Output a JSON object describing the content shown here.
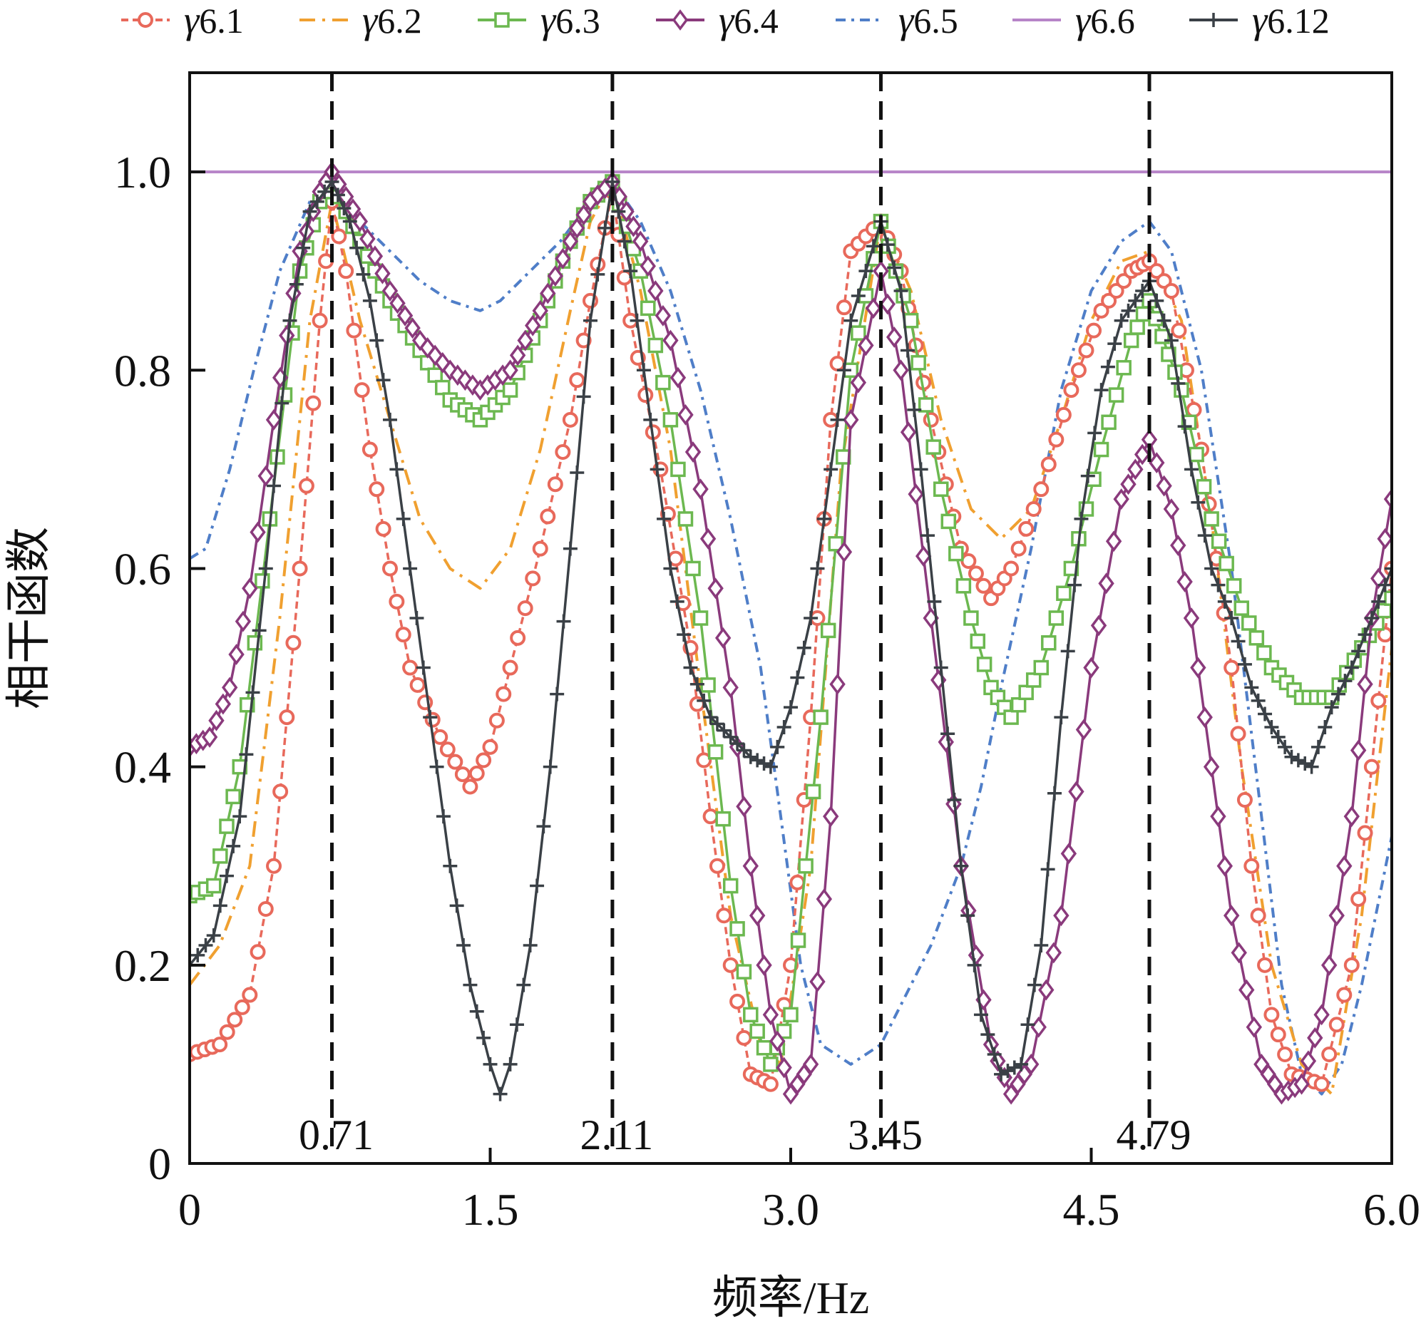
{
  "chart_data": {
    "type": "line",
    "title": "",
    "xlabel": "频率/Hz",
    "ylabel": "相干函数",
    "xlim": [
      0,
      6.0
    ],
    "ylim": [
      0,
      1.1
    ],
    "x_ticks": [
      "0",
      "1.5",
      "3.0",
      "4.5",
      "6.0"
    ],
    "y_ticks": [
      "0",
      "0.2",
      "0.4",
      "0.6",
      "0.8",
      "1.0"
    ],
    "legend_position": "top",
    "grid": false,
    "reference_lines": [
      {
        "x": 0.71,
        "label": "0.71"
      },
      {
        "x": 2.11,
        "label": "2.11"
      },
      {
        "x": 3.45,
        "label": "3.45"
      },
      {
        "x": 4.79,
        "label": "4.79"
      }
    ],
    "series": [
      {
        "name": "γ6.1",
        "symbol": "γ",
        "sub": "6.1",
        "color": "#e8695b",
        "marker": "circle",
        "dash": "10,6",
        "x": [
          0,
          0.15,
          0.3,
          0.42,
          0.55,
          0.65,
          0.71,
          0.78,
          0.9,
          1.0,
          1.1,
          1.25,
          1.4,
          1.5,
          1.6,
          1.75,
          1.9,
          2.0,
          2.11,
          2.2,
          2.35,
          2.5,
          2.6,
          2.7,
          2.8,
          2.9,
          3.0,
          3.1,
          3.2,
          3.3,
          3.45,
          3.55,
          3.7,
          3.85,
          4.0,
          4.1,
          4.25,
          4.4,
          4.55,
          4.7,
          4.79,
          4.9,
          5.05,
          5.2,
          5.3,
          5.4,
          5.5,
          5.65,
          5.8,
          5.9,
          6.0
        ],
        "y": [
          0.11,
          0.12,
          0.17,
          0.3,
          0.6,
          0.85,
          0.97,
          0.9,
          0.72,
          0.6,
          0.5,
          0.43,
          0.38,
          0.42,
          0.5,
          0.62,
          0.75,
          0.87,
          0.98,
          0.85,
          0.7,
          0.52,
          0.35,
          0.2,
          0.09,
          0.08,
          0.2,
          0.45,
          0.75,
          0.92,
          0.95,
          0.9,
          0.75,
          0.62,
          0.57,
          0.6,
          0.68,
          0.78,
          0.86,
          0.9,
          0.91,
          0.88,
          0.72,
          0.5,
          0.3,
          0.15,
          0.09,
          0.08,
          0.2,
          0.4,
          0.6
        ]
      },
      {
        "name": "γ6.2",
        "symbol": "γ",
        "sub": "6.2",
        "color": "#f0a030",
        "marker": "none",
        "dash": "22,10,4,10",
        "x": [
          0,
          0.15,
          0.3,
          0.45,
          0.6,
          0.71,
          0.85,
          1.0,
          1.15,
          1.3,
          1.45,
          1.6,
          1.75,
          1.9,
          2.0,
          2.11,
          2.25,
          2.4,
          2.55,
          2.7,
          2.85,
          2.95,
          3.1,
          3.25,
          3.45,
          3.6,
          3.75,
          3.9,
          4.05,
          4.2,
          4.35,
          4.5,
          4.65,
          4.79,
          4.95,
          5.1,
          5.25,
          5.4,
          5.55,
          5.7,
          5.85,
          6.0
        ],
        "y": [
          0.18,
          0.22,
          0.3,
          0.55,
          0.85,
          0.97,
          0.85,
          0.75,
          0.65,
          0.6,
          0.58,
          0.62,
          0.72,
          0.86,
          0.95,
          0.99,
          0.88,
          0.72,
          0.48,
          0.25,
          0.12,
          0.1,
          0.3,
          0.7,
          0.95,
          0.88,
          0.75,
          0.66,
          0.63,
          0.66,
          0.75,
          0.85,
          0.91,
          0.92,
          0.85,
          0.65,
          0.4,
          0.2,
          0.1,
          0.07,
          0.25,
          0.52
        ]
      },
      {
        "name": "γ6.3",
        "symbol": "γ",
        "sub": "6.3",
        "color": "#6cb850",
        "marker": "square",
        "dash": "",
        "x": [
          0,
          0.12,
          0.25,
          0.4,
          0.55,
          0.65,
          0.71,
          0.85,
          1.0,
          1.15,
          1.3,
          1.45,
          1.6,
          1.75,
          1.9,
          2.0,
          2.11,
          2.25,
          2.4,
          2.55,
          2.7,
          2.8,
          2.9,
          3.0,
          3.15,
          3.3,
          3.45,
          3.6,
          3.75,
          3.9,
          4.0,
          4.1,
          4.25,
          4.4,
          4.55,
          4.7,
          4.79,
          4.95,
          5.1,
          5.25,
          5.4,
          5.55,
          5.7,
          5.85,
          6.0
        ],
        "y": [
          0.27,
          0.28,
          0.4,
          0.65,
          0.9,
          0.97,
          0.99,
          0.93,
          0.87,
          0.82,
          0.77,
          0.75,
          0.78,
          0.85,
          0.93,
          0.97,
          0.99,
          0.9,
          0.75,
          0.55,
          0.28,
          0.15,
          0.1,
          0.15,
          0.45,
          0.8,
          0.95,
          0.85,
          0.68,
          0.55,
          0.48,
          0.45,
          0.5,
          0.6,
          0.72,
          0.83,
          0.87,
          0.78,
          0.65,
          0.56,
          0.5,
          0.47,
          0.47,
          0.52,
          0.57
        ]
      },
      {
        "name": "γ6.4",
        "symbol": "γ",
        "sub": "6.4",
        "color": "#8a3a7c",
        "marker": "diamond",
        "dash": "",
        "x": [
          0,
          0.1,
          0.2,
          0.3,
          0.42,
          0.55,
          0.65,
          0.71,
          0.85,
          1.0,
          1.15,
          1.3,
          1.45,
          1.6,
          1.75,
          1.9,
          2.0,
          2.11,
          2.25,
          2.4,
          2.55,
          2.7,
          2.8,
          2.9,
          3.0,
          3.1,
          3.2,
          3.3,
          3.45,
          3.55,
          3.7,
          3.85,
          4.0,
          4.1,
          4.2,
          4.35,
          4.5,
          4.65,
          4.79,
          4.9,
          5.0,
          5.1,
          5.2,
          5.35,
          5.45,
          5.55,
          5.65,
          5.8,
          5.9,
          6.0
        ],
        "y": [
          0.42,
          0.43,
          0.48,
          0.58,
          0.75,
          0.92,
          0.98,
          1.0,
          0.95,
          0.88,
          0.83,
          0.8,
          0.78,
          0.8,
          0.86,
          0.93,
          0.97,
          0.99,
          0.93,
          0.83,
          0.68,
          0.48,
          0.3,
          0.15,
          0.07,
          0.1,
          0.35,
          0.75,
          0.9,
          0.8,
          0.55,
          0.3,
          0.12,
          0.07,
          0.1,
          0.25,
          0.5,
          0.67,
          0.73,
          0.66,
          0.55,
          0.4,
          0.25,
          0.1,
          0.07,
          0.08,
          0.15,
          0.35,
          0.55,
          0.67
        ]
      },
      {
        "name": "γ6.5",
        "symbol": "γ",
        "sub": "6.5",
        "color": "#4f7ec8",
        "marker": "none",
        "dash": "14,8,4,8",
        "x": [
          0,
          0.08,
          0.2,
          0.32,
          0.45,
          0.6,
          0.71,
          0.85,
          1.0,
          1.15,
          1.3,
          1.45,
          1.55,
          1.7,
          1.85,
          2.0,
          2.11,
          2.25,
          2.4,
          2.55,
          2.7,
          2.85,
          2.95,
          3.05,
          3.15,
          3.3,
          3.45,
          3.55,
          3.7,
          3.85,
          3.95,
          4.05,
          4.2,
          4.35,
          4.5,
          4.65,
          4.79,
          4.9,
          5.05,
          5.2,
          5.35,
          5.45,
          5.55,
          5.65,
          5.75,
          5.85,
          6.0
        ],
        "y": [
          0.61,
          0.62,
          0.7,
          0.8,
          0.9,
          0.97,
          0.99,
          0.95,
          0.92,
          0.89,
          0.87,
          0.86,
          0.87,
          0.9,
          0.93,
          0.97,
          0.99,
          0.95,
          0.88,
          0.78,
          0.65,
          0.5,
          0.35,
          0.2,
          0.12,
          0.1,
          0.12,
          0.16,
          0.22,
          0.3,
          0.38,
          0.48,
          0.62,
          0.78,
          0.88,
          0.93,
          0.95,
          0.92,
          0.8,
          0.6,
          0.35,
          0.18,
          0.09,
          0.07,
          0.1,
          0.18,
          0.33
        ]
      },
      {
        "name": "γ6.6",
        "symbol": "γ",
        "sub": "6.6",
        "color": "#b784c8",
        "marker": "none",
        "dash": "",
        "x": [
          0,
          6.0
        ],
        "y": [
          1.0,
          1.0
        ]
      },
      {
        "name": "γ6.12",
        "symbol": "γ",
        "sub": "6.12",
        "color": "#3a4046",
        "marker": "plus",
        "dash": "",
        "x": [
          0,
          0.12,
          0.25,
          0.38,
          0.5,
          0.6,
          0.71,
          0.8,
          0.9,
          1.0,
          1.1,
          1.2,
          1.3,
          1.4,
          1.5,
          1.55,
          1.6,
          1.7,
          1.8,
          1.9,
          2.0,
          2.11,
          2.2,
          2.3,
          2.4,
          2.5,
          2.6,
          2.7,
          2.8,
          2.9,
          3.0,
          3.1,
          3.2,
          3.3,
          3.45,
          3.55,
          3.65,
          3.75,
          3.85,
          3.95,
          4.05,
          4.15,
          4.25,
          4.35,
          4.45,
          4.55,
          4.65,
          4.79,
          4.9,
          5.0,
          5.1,
          5.2,
          5.3,
          5.4,
          5.5,
          5.6,
          5.7,
          5.8,
          5.9,
          6.0
        ],
        "y": [
          0.2,
          0.23,
          0.35,
          0.6,
          0.85,
          0.96,
          0.99,
          0.95,
          0.87,
          0.75,
          0.6,
          0.45,
          0.3,
          0.18,
          0.1,
          0.07,
          0.1,
          0.22,
          0.4,
          0.62,
          0.85,
          0.99,
          0.9,
          0.75,
          0.6,
          0.5,
          0.45,
          0.43,
          0.41,
          0.4,
          0.46,
          0.55,
          0.7,
          0.85,
          0.95,
          0.88,
          0.7,
          0.5,
          0.3,
          0.15,
          0.09,
          0.1,
          0.22,
          0.45,
          0.65,
          0.78,
          0.85,
          0.89,
          0.83,
          0.7,
          0.6,
          0.55,
          0.48,
          0.44,
          0.41,
          0.4,
          0.46,
          0.5,
          0.55,
          0.6
        ]
      }
    ]
  }
}
